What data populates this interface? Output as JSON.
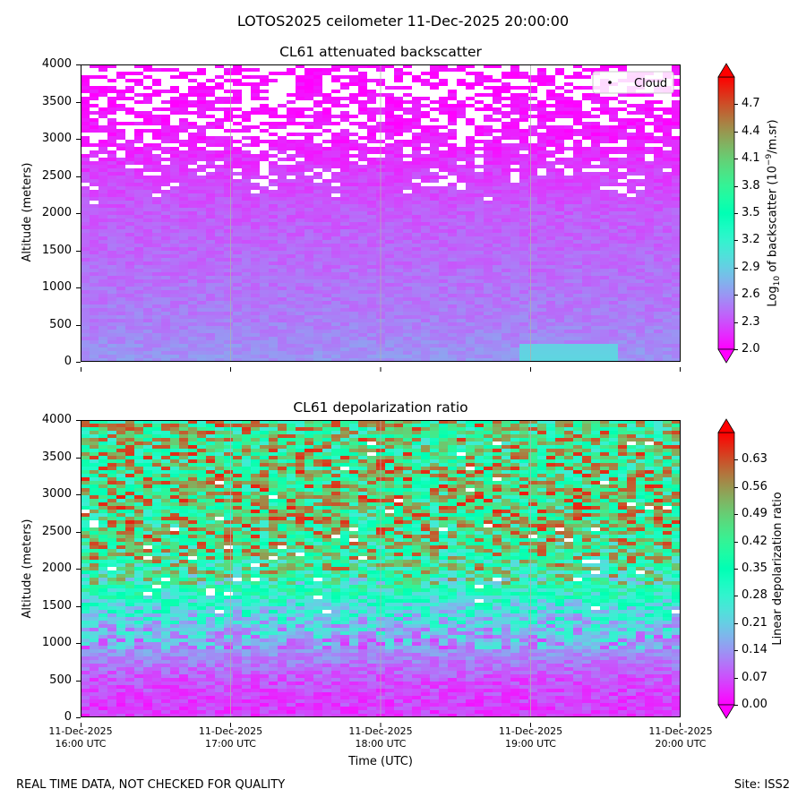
{
  "suptitle": "LOTOS2025 ceilometer 11-Dec-2025 20:00:00",
  "footer": {
    "left": "REAL TIME DATA, NOT CHECKED FOR QUALITY",
    "right": "Site: ISS2"
  },
  "xlabel": "Time (UTC)",
  "x_ticks": [
    {
      "date": "11-Dec-2025",
      "time": "16:00 UTC"
    },
    {
      "date": "11-Dec-2025",
      "time": "17:00 UTC"
    },
    {
      "date": "11-Dec-2025",
      "time": "18:00 UTC"
    },
    {
      "date": "11-Dec-2025",
      "time": "19:00 UTC"
    },
    {
      "date": "11-Dec-2025",
      "time": "20:00 UTC"
    }
  ],
  "chart_data": [
    {
      "type": "heatmap",
      "title": "CL61 attenuated backscatter",
      "ylabel": "Altitude (meters)",
      "ylim": [
        0,
        4000
      ],
      "yticks": [
        "0",
        "500",
        "1000",
        "1500",
        "2000",
        "2500",
        "3000",
        "3500",
        "4000"
      ],
      "xlim": [
        "16:00 UTC",
        "20:00 UTC"
      ],
      "colormap": "rainbow",
      "colorbar": {
        "label_prefix": "Log",
        "label_sub": "10",
        "label_mid": " of backscatter (10",
        "label_sup": "−9",
        "label_suffix": "/m.sr)",
        "range": [
          2.0,
          5.0
        ],
        "extend": "both",
        "ticks": [
          "2.0",
          "2.3",
          "2.6",
          "2.9",
          "3.2",
          "3.5",
          "3.8",
          "4.1",
          "4.4",
          "4.7"
        ]
      },
      "legend": {
        "entries": [
          "Cloud"
        ],
        "placement": "top-right"
      },
      "grid": "vertical lines at hour ticks",
      "profile": [
        {
          "altitude": 0,
          "value": 2.6
        },
        {
          "altitude": 500,
          "value": 2.5
        },
        {
          "altitude": 1000,
          "value": 2.45
        },
        {
          "altitude": 1500,
          "value": 2.4
        },
        {
          "altitude": 2000,
          "value": 2.35
        },
        {
          "altitude": 2500,
          "value": 2.25
        },
        {
          "altitude": 3000,
          "value": 2.1
        },
        {
          "altitude": 3500,
          "value": 2.05
        },
        {
          "altitude": 4000,
          "value": 2.0
        }
      ]
    },
    {
      "type": "heatmap",
      "title": "CL61 depolarization ratio",
      "ylabel": "Altitude (meters)",
      "ylim": [
        0,
        4000
      ],
      "yticks": [
        "0",
        "500",
        "1000",
        "1500",
        "2000",
        "2500",
        "3000",
        "3500",
        "4000"
      ],
      "xlim": [
        "16:00 UTC",
        "20:00 UTC"
      ],
      "colormap": "rainbow",
      "colorbar": {
        "label": "Linear depolarization ratio",
        "range": [
          0.0,
          0.7
        ],
        "extend": "both",
        "ticks": [
          "0.00",
          "0.07",
          "0.14",
          "0.21",
          "0.28",
          "0.35",
          "0.42",
          "0.49",
          "0.56",
          "0.63"
        ]
      },
      "grid": "vertical lines at hour ticks",
      "profile": [
        {
          "altitude": 0,
          "value": 0.05
        },
        {
          "altitude": 500,
          "value": 0.07
        },
        {
          "altitude": 1000,
          "value": 0.16
        },
        {
          "altitude": 1500,
          "value": 0.26
        },
        {
          "altitude": 2000,
          "value": 0.42
        },
        {
          "altitude": 2500,
          "value": 0.46
        },
        {
          "altitude": 3000,
          "value": 0.47
        },
        {
          "altitude": 3500,
          "value": 0.46
        },
        {
          "altitude": 4000,
          "value": 0.45
        }
      ]
    }
  ]
}
